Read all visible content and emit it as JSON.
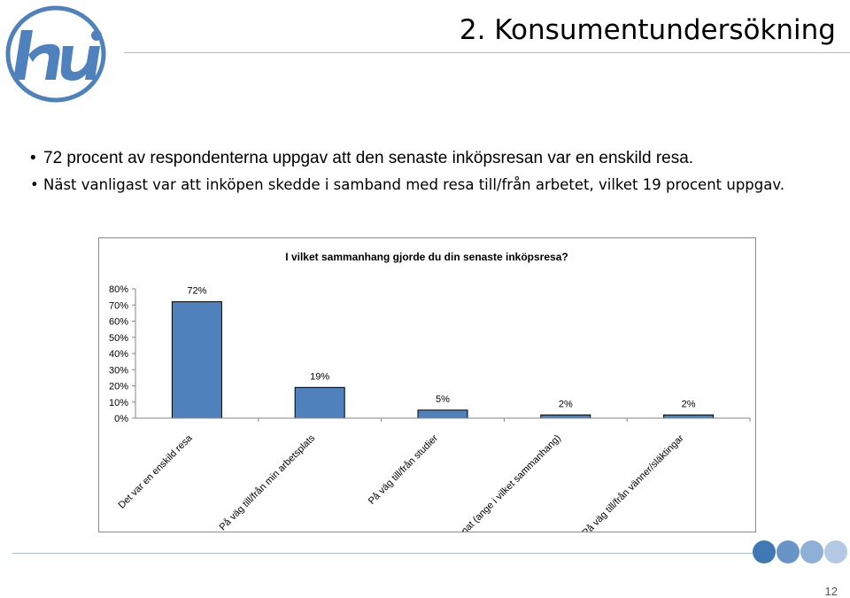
{
  "header": {
    "title": "2. Konsumentundersökning",
    "logo_icon": "hui-logo-icon",
    "logo_text": "hui"
  },
  "bullets": [
    "72 procent av respondenterna uppgav att den senaste inköpsresan var en enskild resa.",
    "Näst vanligast var att inköpen skedde i samband med resa till/från arbetet, vilket 19 procent uppgav."
  ],
  "chart_data": {
    "type": "bar",
    "title": "I vilket sammanhang gjorde du din senaste inköpsresa?",
    "categories": [
      "Det var en enskild resa",
      "På väg till/från min arbetsplats",
      "På väg till/från studier",
      "Annat (ange i vilket sammanhang)",
      "På väg till/från vänner/släktingar"
    ],
    "values": [
      72,
      19,
      5,
      2,
      2
    ],
    "value_labels": [
      "72%",
      "19%",
      "5%",
      "2%",
      "2%"
    ],
    "y_ticks": [
      "0%",
      "10%",
      "20%",
      "30%",
      "40%",
      "50%",
      "60%",
      "70%",
      "80%"
    ],
    "ylim": [
      0,
      80
    ],
    "grid": false,
    "legend": "none",
    "bar_color": "#4f81bd"
  },
  "theme": {
    "accent": "#4f81bd",
    "line_color": "#a9bcd6",
    "circle_colors": [
      "#3f78b5",
      "#6894c7",
      "#8eb0d6",
      "#b3c9e4"
    ]
  },
  "footer": {
    "page_number": "12"
  }
}
